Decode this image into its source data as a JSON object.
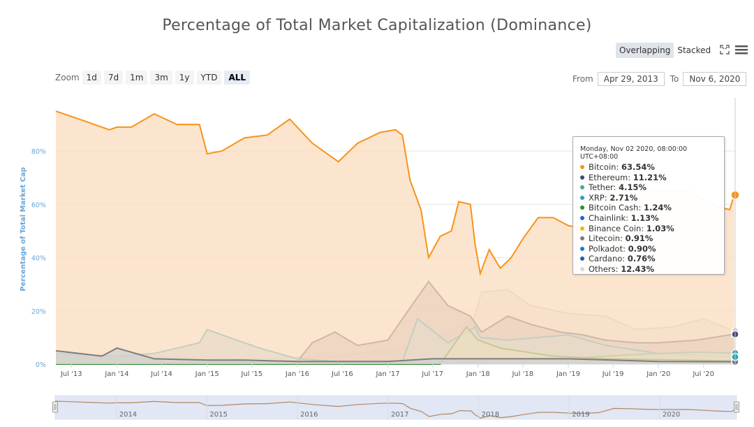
{
  "header": {
    "title": "Percentage of Total Market Capitalization (Dominance)",
    "overlapping_label": "Overlapping",
    "stacked_label": "Stacked"
  },
  "range_selector": {
    "zoom_label": "Zoom",
    "buttons": [
      "1d",
      "7d",
      "1m",
      "3m",
      "1y",
      "YTD",
      "ALL"
    ],
    "selected": "ALL",
    "from_label": "From",
    "from_value": "Apr 29, 2013",
    "to_label": "To",
    "to_value": "Nov 6, 2020"
  },
  "tooltip": {
    "date": "Monday, Nov 02 2020, 08:00:00 UTC+08:00",
    "rows": [
      {
        "name": "Bitcoin",
        "value": "63.54%",
        "color": "#f7931a"
      },
      {
        "name": "Ethereum",
        "value": "11.21%",
        "color": "#434a6e"
      },
      {
        "name": "Tether",
        "value": "4.15%",
        "color": "#4aa891"
      },
      {
        "name": "XRP",
        "value": "2.71%",
        "color": "#23a3c7"
      },
      {
        "name": "Bitcoin Cash",
        "value": "1.24%",
        "color": "#2e8b2e"
      },
      {
        "name": "Chainlink",
        "value": "1.13%",
        "color": "#2a5ada"
      },
      {
        "name": "Binance Coin",
        "value": "1.03%",
        "color": "#f0b90b"
      },
      {
        "name": "Litecoin",
        "value": "0.91%",
        "color": "#7d7d7d"
      },
      {
        "name": "Polkadot",
        "value": "0.90%",
        "color": "#1f78c8"
      },
      {
        "name": "Cardano",
        "value": "0.76%",
        "color": "#1d5fb0"
      },
      {
        "name": "Others",
        "value": "12.43%",
        "color": "#d8d8d8"
      }
    ]
  },
  "chart_data": {
    "type": "area",
    "title": "Percentage of Total Market Capitalization (Dominance)",
    "ylabel": "Percentage of Total Market Cap",
    "ylim": [
      0,
      100
    ],
    "yticks": [
      0,
      20,
      40,
      60,
      80
    ],
    "ytick_labels": [
      "0%",
      "20%",
      "40%",
      "60%",
      "80%"
    ],
    "x_range": [
      "2013-04-29",
      "2020-11-06"
    ],
    "xtick_labels": [
      "Jul '13",
      "Jan '14",
      "Jul '14",
      "Jan '15",
      "Jul '15",
      "Jan '16",
      "Jul '16",
      "Jan '17",
      "Jul '17",
      "Jan '18",
      "Jul '18",
      "Jan '19",
      "Jul '19",
      "Jan '20",
      "Jul '20"
    ],
    "navigator_labels": [
      "2014",
      "2015",
      "2016",
      "2017",
      "2018",
      "2019",
      "2020"
    ],
    "grid": true,
    "legend": "tooltip",
    "series": [
      {
        "name": "Others",
        "color": "#d0d0d0",
        "fill": "#ebebeb",
        "x": [
          "2013-04-29",
          "2014-06-01",
          "2015-06-01",
          "2016-06-01",
          "2017-03-01",
          "2017-07-01",
          "2017-12-15",
          "2018-01-15",
          "2018-05-01",
          "2018-08-01",
          "2019-01-01",
          "2019-06-01",
          "2019-10-01",
          "2020-03-01",
          "2020-07-01",
          "2020-11-02"
        ],
        "y": [
          2,
          3,
          2,
          3,
          6,
          10,
          17,
          27,
          28,
          22,
          19,
          18,
          13,
          14,
          17,
          12.4
        ]
      },
      {
        "name": "Ethereum",
        "color": "#434a6e",
        "fill": "#b8b4c8",
        "x": [
          "2013-04-29",
          "2016-01-01",
          "2016-03-01",
          "2016-06-01",
          "2016-09-01",
          "2017-01-01",
          "2017-03-01",
          "2017-06-15",
          "2017-09-01",
          "2017-12-01",
          "2018-01-15",
          "2018-05-01",
          "2018-08-01",
          "2018-12-01",
          "2019-03-01",
          "2019-06-01",
          "2019-10-01",
          "2020-01-01",
          "2020-06-01",
          "2020-11-02"
        ],
        "y": [
          0,
          1,
          8,
          12,
          7,
          9,
          17,
          31,
          22,
          18,
          12,
          18,
          15,
          12,
          11,
          9,
          8,
          8,
          9,
          11.2
        ]
      },
      {
        "name": "XRP",
        "color": "#23a3c7",
        "fill": "#a8d8e8",
        "x": [
          "2013-04-29",
          "2014-01-01",
          "2014-06-01",
          "2014-12-01",
          "2015-01-01",
          "2015-04-01",
          "2015-08-01",
          "2016-01-01",
          "2016-06-01",
          "2017-03-01",
          "2017-05-01",
          "2017-09-01",
          "2017-12-20",
          "2018-01-10",
          "2018-05-01",
          "2019-01-01",
          "2019-06-01",
          "2020-01-01",
          "2020-11-02"
        ],
        "y": [
          4,
          3,
          4,
          8,
          13,
          10,
          6,
          2,
          1,
          1,
          17,
          8,
          14,
          10,
          9,
          11,
          7,
          4,
          2.7
        ]
      },
      {
        "name": "Tether",
        "color": "#4aa891",
        "fill": "#b9dcd2",
        "x": [
          "2013-04-29",
          "2017-06-01",
          "2018-01-01",
          "2019-01-01",
          "2019-06-01",
          "2020-01-01",
          "2020-06-01",
          "2020-11-02"
        ],
        "y": [
          0,
          0.2,
          1,
          2,
          3,
          4,
          4.5,
          4.15
        ]
      },
      {
        "name": "Bitcoin Cash",
        "color": "#2e8b2e",
        "fill": "#bfe0bf",
        "x": [
          "2013-04-29",
          "2017-08-01",
          "2017-11-15",
          "2018-01-01",
          "2018-04-01",
          "2018-11-01",
          "2019-06-01",
          "2020-11-02"
        ],
        "y": [
          0,
          0,
          14,
          9,
          6,
          3,
          2,
          1.2
        ]
      },
      {
        "name": "Bitcoin",
        "color": "#f7931a",
        "fill": "#fbdcbe",
        "x": [
          "2013-04-29",
          "2013-07-01",
          "2013-09-01",
          "2013-12-01",
          "2014-01-01",
          "2014-03-01",
          "2014-06-01",
          "2014-09-01",
          "2014-12-01",
          "2015-01-01",
          "2015-03-01",
          "2015-06-01",
          "2015-09-01",
          "2015-12-01",
          "2016-03-01",
          "2016-06-15",
          "2016-09-01",
          "2016-12-01",
          "2017-02-01",
          "2017-03-01",
          "2017-04-01",
          "2017-05-15",
          "2017-06-15",
          "2017-08-01",
          "2017-09-15",
          "2017-10-15",
          "2017-12-01",
          "2017-12-20",
          "2018-01-10",
          "2018-02-15",
          "2018-04-01",
          "2018-05-15",
          "2018-07-01",
          "2018-09-01",
          "2018-11-01",
          "2019-01-01",
          "2019-03-01",
          "2019-05-01",
          "2019-07-01",
          "2019-09-01",
          "2019-11-01",
          "2020-01-01",
          "2020-03-01",
          "2020-05-01",
          "2020-07-01",
          "2020-09-01",
          "2020-10-15",
          "2020-11-02"
        ],
        "y": [
          95,
          93,
          91,
          88,
          89,
          89,
          94,
          90,
          90,
          79,
          80,
          85,
          86,
          92,
          83,
          76,
          83,
          87,
          88,
          86,
          69,
          58,
          40,
          48,
          50,
          61,
          60,
          45,
          34,
          43,
          36,
          40,
          47,
          55,
          55,
          52,
          51,
          54,
          69,
          68,
          66,
          65,
          65,
          65,
          62,
          59,
          58,
          63.5
        ]
      },
      {
        "name": "Litecoin",
        "color": "#7d7d7d",
        "fill": "#d0d0d0",
        "x": [
          "2013-04-29",
          "2013-11-01",
          "2014-01-01",
          "2014-06-01",
          "2015-01-01",
          "2015-06-01",
          "2016-01-01",
          "2017-01-01",
          "2017-07-01",
          "2018-01-01",
          "2019-01-01",
          "2020-01-01",
          "2020-11-02"
        ],
        "y": [
          5,
          3,
          6,
          2,
          1.5,
          1.5,
          1,
          1,
          2,
          2,
          2,
          1,
          0.9
        ]
      }
    ]
  }
}
